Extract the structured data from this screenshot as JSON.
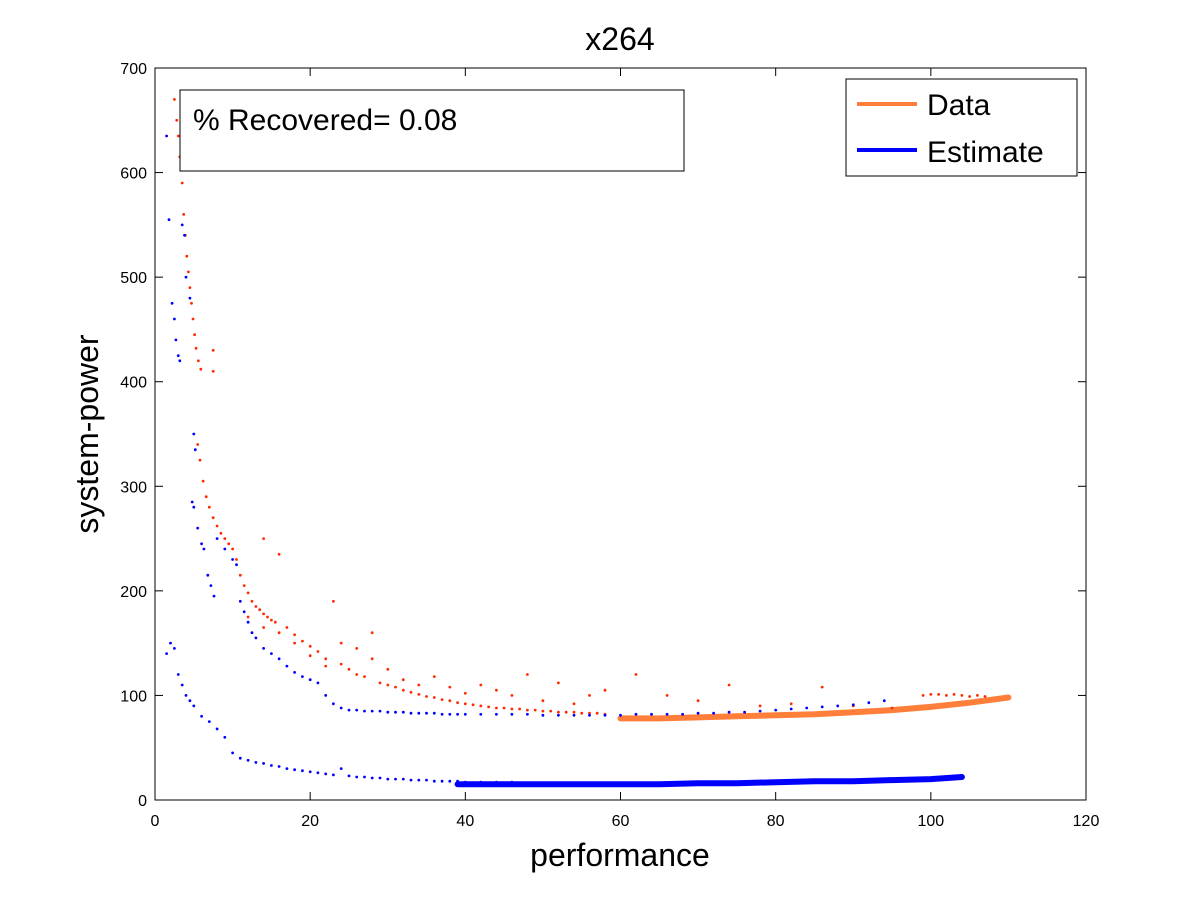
{
  "chart_data": {
    "type": "scatter",
    "title": "x264",
    "xlabel": "performance",
    "ylabel": "system-power",
    "xlim": [
      0,
      120
    ],
    "ylim": [
      0,
      700
    ],
    "xticks": [
      0,
      20,
      40,
      60,
      80,
      100,
      120
    ],
    "yticks": [
      0,
      100,
      200,
      300,
      400,
      500,
      600,
      700
    ],
    "grid": false,
    "annotation": "% Recovered= 0.08",
    "legend": {
      "placement": "top-right",
      "entries": [
        {
          "label": "Data",
          "color": "#ff7f3a"
        },
        {
          "label": "Estimate",
          "color": "#0000ff"
        }
      ]
    },
    "series": [
      {
        "name": "Data",
        "color": "#ff7f3a",
        "marker_color": "#ff2a00",
        "points": [
          [
            2.5,
            670
          ],
          [
            2.8,
            650
          ],
          [
            3,
            635
          ],
          [
            3.2,
            615
          ],
          [
            3.5,
            590
          ],
          [
            3.7,
            560
          ],
          [
            3.9,
            540
          ],
          [
            4.1,
            520
          ],
          [
            4.3,
            505
          ],
          [
            4.5,
            490
          ],
          [
            4.7,
            475
          ],
          [
            4.9,
            460
          ],
          [
            5.1,
            445
          ],
          [
            5.3,
            432
          ],
          [
            5.6,
            420
          ],
          [
            5.9,
            412
          ],
          [
            7.5,
            430
          ],
          [
            7.5,
            410
          ],
          [
            5.5,
            340
          ],
          [
            5.8,
            325
          ],
          [
            6.2,
            305
          ],
          [
            6.6,
            290
          ],
          [
            7,
            280
          ],
          [
            7.5,
            270
          ],
          [
            8,
            262
          ],
          [
            8.5,
            255
          ],
          [
            9,
            250
          ],
          [
            9.5,
            245
          ],
          [
            10,
            240
          ],
          [
            10.5,
            230
          ],
          [
            11,
            215
          ],
          [
            11.5,
            205
          ],
          [
            12,
            198
          ],
          [
            12.5,
            190
          ],
          [
            13,
            185
          ],
          [
            13.5,
            182
          ],
          [
            14,
            178
          ],
          [
            14.5,
            175
          ],
          [
            15,
            172
          ],
          [
            15.5,
            170
          ],
          [
            16,
            235
          ],
          [
            14,
            250
          ],
          [
            17,
            165
          ],
          [
            18,
            158
          ],
          [
            19,
            152
          ],
          [
            20,
            147
          ],
          [
            21,
            142
          ],
          [
            22,
            135
          ],
          [
            23,
            190
          ],
          [
            24,
            130
          ],
          [
            25,
            125
          ],
          [
            26,
            120
          ],
          [
            27,
            118
          ],
          [
            28,
            160
          ],
          [
            29,
            112
          ],
          [
            30,
            110
          ],
          [
            31,
            108
          ],
          [
            32,
            105
          ],
          [
            33,
            103
          ],
          [
            34,
            101
          ],
          [
            35,
            99
          ],
          [
            36,
            98
          ],
          [
            37,
            96
          ],
          [
            38,
            95
          ],
          [
            39,
            93
          ],
          [
            40,
            92
          ],
          [
            41,
            91
          ],
          [
            42,
            90
          ],
          [
            43,
            89
          ],
          [
            44,
            88
          ],
          [
            45,
            88
          ],
          [
            46,
            87
          ],
          [
            47,
            87
          ],
          [
            48,
            86
          ],
          [
            49,
            86
          ],
          [
            50,
            85
          ],
          [
            51,
            85
          ],
          [
            52,
            84
          ],
          [
            53,
            84
          ],
          [
            54,
            84
          ],
          [
            55,
            83
          ],
          [
            56,
            83
          ],
          [
            57,
            83
          ],
          [
            58,
            82
          ],
          [
            12,
            175
          ],
          [
            14,
            165
          ],
          [
            16,
            160
          ],
          [
            18,
            150
          ],
          [
            20,
            138
          ],
          [
            22,
            128
          ],
          [
            24,
            150
          ],
          [
            26,
            145
          ],
          [
            28,
            135
          ],
          [
            30,
            125
          ],
          [
            32,
            115
          ],
          [
            34,
            110
          ],
          [
            36,
            118
          ],
          [
            38,
            108
          ],
          [
            40,
            102
          ],
          [
            42,
            110
          ],
          [
            44,
            105
          ],
          [
            46,
            100
          ],
          [
            48,
            120
          ],
          [
            50,
            95
          ],
          [
            52,
            112
          ],
          [
            54,
            92
          ],
          [
            56,
            100
          ],
          [
            58,
            105
          ],
          [
            62,
            120
          ],
          [
            66,
            100
          ],
          [
            70,
            95
          ],
          [
            74,
            110
          ],
          [
            78,
            90
          ],
          [
            82,
            92
          ],
          [
            86,
            108
          ],
          [
            90,
            90
          ],
          [
            95,
            88
          ],
          [
            99,
            100
          ],
          [
            100,
            101
          ],
          [
            101,
            101
          ],
          [
            102,
            100
          ],
          [
            103,
            101
          ],
          [
            104,
            100
          ],
          [
            105,
            99
          ],
          [
            106,
            100
          ],
          [
            107,
            99
          ]
        ]
      },
      {
        "name": "Data-curve",
        "color": "#ff7f3a",
        "curve": [
          [
            60,
            78
          ],
          [
            65,
            78
          ],
          [
            70,
            79
          ],
          [
            75,
            80
          ],
          [
            80,
            81
          ],
          [
            85,
            82
          ],
          [
            90,
            84
          ],
          [
            95,
            86
          ],
          [
            100,
            89
          ],
          [
            105,
            93
          ],
          [
            110,
            98
          ]
        ]
      },
      {
        "name": "Estimate",
        "color": "#0000ff",
        "marker_color": "#0000ff",
        "points": [
          [
            1.5,
            635
          ],
          [
            1.8,
            555
          ],
          [
            2.2,
            475
          ],
          [
            2.5,
            460
          ],
          [
            2.7,
            440
          ],
          [
            3,
            425
          ],
          [
            3.2,
            420
          ],
          [
            3.5,
            550
          ],
          [
            3.8,
            540
          ],
          [
            4,
            500
          ],
          [
            4.5,
            480
          ],
          [
            5,
            350
          ],
          [
            5.2,
            335
          ],
          [
            4.8,
            285
          ],
          [
            5,
            280
          ],
          [
            5.5,
            260
          ],
          [
            6,
            245
          ],
          [
            6.3,
            240
          ],
          [
            6.8,
            215
          ],
          [
            7.2,
            205
          ],
          [
            7.6,
            195
          ],
          [
            8,
            250
          ],
          [
            9,
            240
          ],
          [
            10,
            230
          ],
          [
            10.5,
            225
          ],
          [
            11,
            190
          ],
          [
            11.5,
            180
          ],
          [
            12,
            170
          ],
          [
            12.5,
            160
          ],
          [
            13,
            155
          ],
          [
            14,
            145
          ],
          [
            15,
            140
          ],
          [
            16,
            135
          ],
          [
            17,
            128
          ],
          [
            18,
            122
          ],
          [
            19,
            118
          ],
          [
            20,
            115
          ],
          [
            21,
            112
          ],
          [
            22,
            100
          ],
          [
            23,
            92
          ],
          [
            24,
            88
          ],
          [
            25,
            86
          ],
          [
            26,
            86
          ],
          [
            27,
            85
          ],
          [
            28,
            85
          ],
          [
            29,
            85
          ],
          [
            30,
            84
          ],
          [
            31,
            84
          ],
          [
            32,
            84
          ],
          [
            33,
            83
          ],
          [
            34,
            83
          ],
          [
            35,
            83
          ],
          [
            36,
            83
          ],
          [
            37,
            82
          ],
          [
            38,
            82
          ],
          [
            39,
            82
          ],
          [
            40,
            82
          ],
          [
            42,
            82
          ],
          [
            44,
            82
          ],
          [
            46,
            82
          ],
          [
            48,
            82
          ],
          [
            50,
            81
          ],
          [
            52,
            81
          ],
          [
            54,
            81
          ],
          [
            56,
            81
          ],
          [
            58,
            81
          ],
          [
            60,
            81
          ],
          [
            62,
            82
          ],
          [
            64,
            82
          ],
          [
            66,
            82
          ],
          [
            68,
            82
          ],
          [
            70,
            83
          ],
          [
            72,
            83
          ],
          [
            74,
            84
          ],
          [
            76,
            84
          ],
          [
            78,
            85
          ],
          [
            80,
            86
          ],
          [
            82,
            87
          ],
          [
            84,
            88
          ],
          [
            86,
            89
          ],
          [
            88,
            90
          ],
          [
            90,
            91
          ],
          [
            92,
            93
          ],
          [
            94,
            95
          ],
          [
            1.5,
            140
          ],
          [
            2,
            150
          ],
          [
            2.5,
            145
          ],
          [
            3,
            120
          ],
          [
            3.5,
            110
          ],
          [
            4,
            100
          ],
          [
            4.5,
            95
          ],
          [
            5,
            90
          ],
          [
            6,
            80
          ],
          [
            7,
            75
          ],
          [
            8,
            68
          ],
          [
            9,
            60
          ],
          [
            10,
            45
          ],
          [
            11,
            40
          ],
          [
            12,
            38
          ],
          [
            13,
            36
          ],
          [
            14,
            35
          ],
          [
            15,
            33
          ],
          [
            16,
            32
          ],
          [
            17,
            30
          ],
          [
            18,
            29
          ],
          [
            19,
            28
          ],
          [
            20,
            27
          ],
          [
            21,
            26
          ],
          [
            22,
            25
          ],
          [
            23,
            24
          ],
          [
            24,
            30
          ],
          [
            25,
            23
          ],
          [
            26,
            22
          ],
          [
            27,
            22
          ],
          [
            28,
            21
          ],
          [
            29,
            21
          ],
          [
            30,
            20
          ],
          [
            31,
            20
          ],
          [
            32,
            20
          ],
          [
            33,
            19
          ],
          [
            34,
            19
          ],
          [
            35,
            19
          ],
          [
            36,
            18
          ],
          [
            37,
            18
          ],
          [
            38,
            18
          ],
          [
            39,
            18
          ],
          [
            40,
            17
          ],
          [
            42,
            17
          ],
          [
            44,
            17
          ],
          [
            46,
            17
          ],
          [
            48,
            16
          ],
          [
            50,
            16
          ],
          [
            52,
            16
          ],
          [
            54,
            16
          ],
          [
            56,
            16
          ],
          [
            58,
            16
          ],
          [
            60,
            16
          ],
          [
            62,
            16
          ],
          [
            64,
            16
          ],
          [
            66,
            16
          ],
          [
            68,
            16
          ],
          [
            70,
            16
          ],
          [
            72,
            16
          ],
          [
            74,
            16
          ],
          [
            76,
            16
          ],
          [
            78,
            17
          ],
          [
            80,
            17
          ],
          [
            82,
            17
          ],
          [
            84,
            17
          ],
          [
            86,
            18
          ],
          [
            88,
            18
          ],
          [
            90,
            19
          ],
          [
            92,
            19
          ],
          [
            94,
            20
          ],
          [
            96,
            20
          ],
          [
            98,
            21
          ],
          [
            100,
            21
          ],
          [
            102,
            22
          ],
          [
            104,
            23
          ]
        ]
      },
      {
        "name": "Estimate-curve",
        "color": "#0000ff",
        "curve": [
          [
            39,
            15
          ],
          [
            45,
            15
          ],
          [
            50,
            15
          ],
          [
            55,
            15
          ],
          [
            60,
            15
          ],
          [
            65,
            15
          ],
          [
            70,
            16
          ],
          [
            75,
            16
          ],
          [
            80,
            17
          ],
          [
            85,
            18
          ],
          [
            90,
            18
          ],
          [
            95,
            19
          ],
          [
            100,
            20
          ],
          [
            104,
            22
          ]
        ]
      }
    ]
  }
}
